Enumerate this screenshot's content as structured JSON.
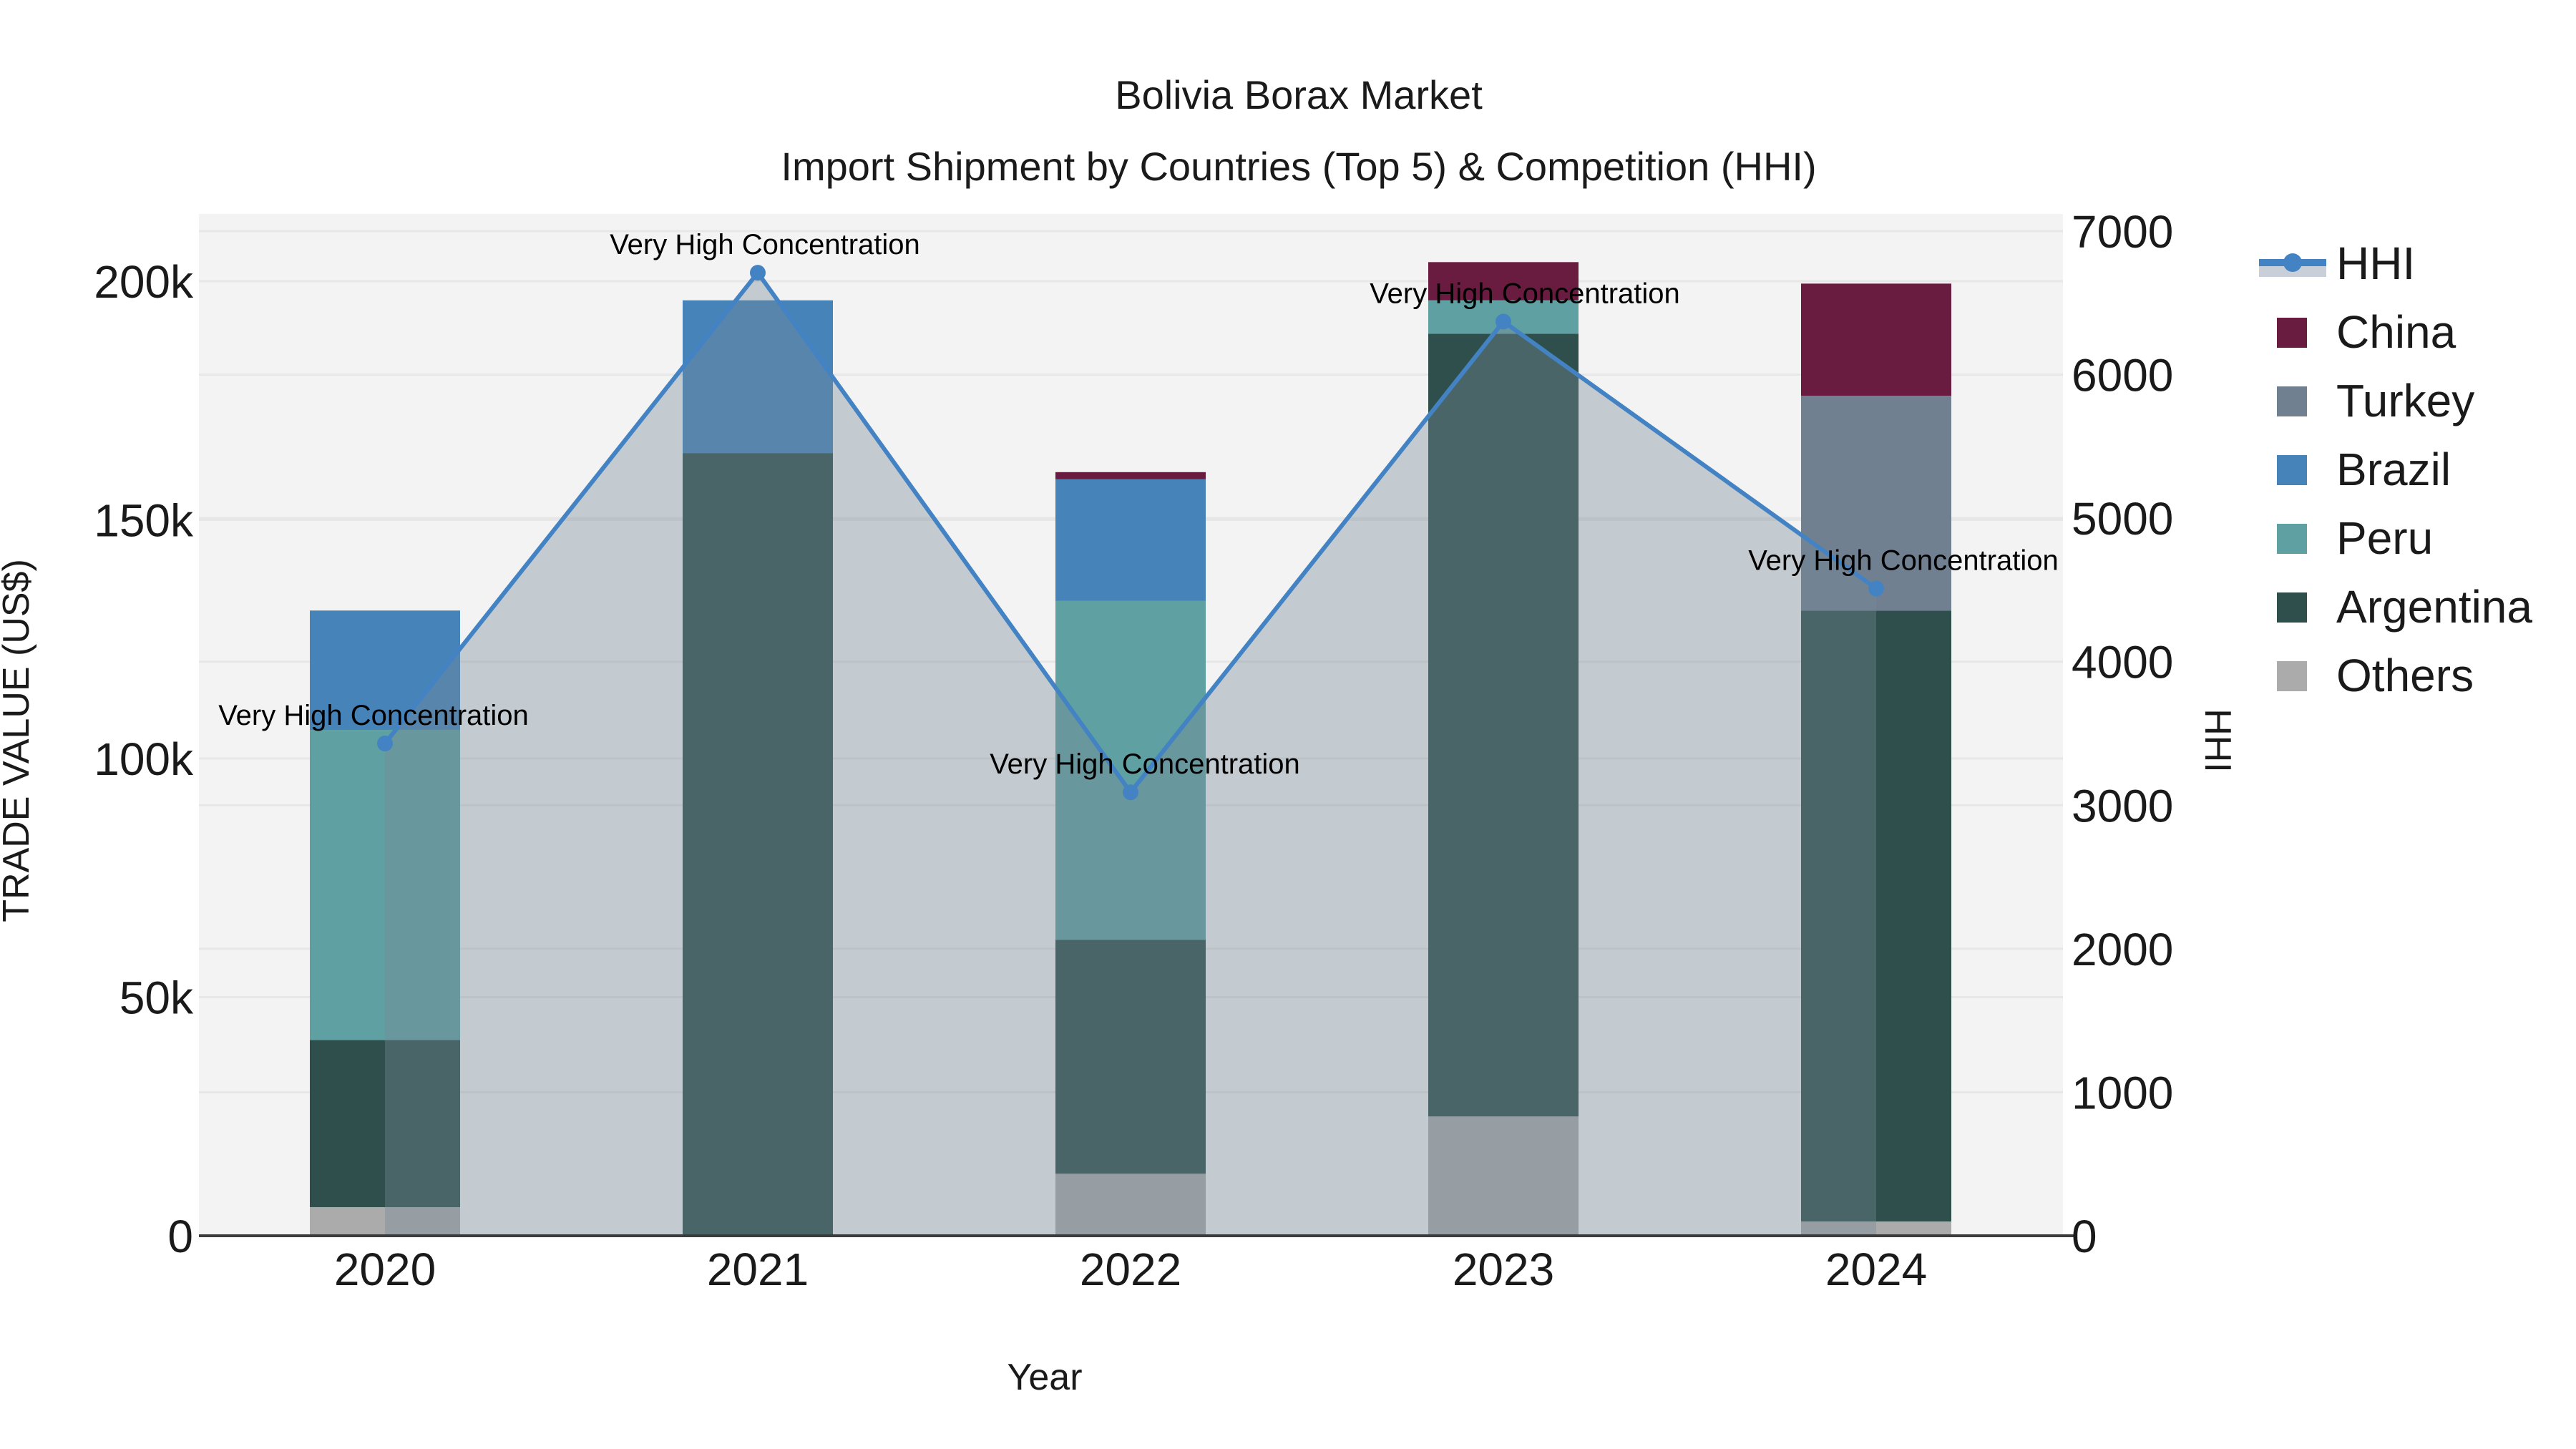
{
  "title": {
    "line1": "Bolivia Borax Market",
    "line2": "Import Shipment by Countries (Top 5) & Competition (HHI)"
  },
  "axes": {
    "x": {
      "title": "Year",
      "tick_labels": [
        "2020",
        "2021",
        "2022",
        "2023",
        "2024"
      ]
    },
    "y_left": {
      "title": "TRADE VALUE (US$)",
      "tick_labels": [
        "0",
        "50k",
        "100k",
        "150k",
        "200k"
      ],
      "tick_values": [
        0,
        50000,
        100000,
        150000,
        200000
      ],
      "range": [
        0,
        214000
      ]
    },
    "y_right": {
      "title": "HHI",
      "tick_labels": [
        "0",
        "1000",
        "2000",
        "3000",
        "4000",
        "5000",
        "6000",
        "7000"
      ],
      "tick_values": [
        0,
        1000,
        2000,
        3000,
        4000,
        5000,
        6000,
        7000
      ],
      "range": [
        0,
        7100
      ]
    }
  },
  "legend": {
    "position": "right",
    "items": [
      {
        "label": "HHI",
        "type": "line"
      },
      {
        "label": "China",
        "type": "swatch"
      },
      {
        "label": "Turkey",
        "type": "swatch"
      },
      {
        "label": "Brazil",
        "type": "swatch"
      },
      {
        "label": "Peru",
        "type": "swatch"
      },
      {
        "label": "Argentina",
        "type": "swatch"
      },
      {
        "label": "Others",
        "type": "swatch"
      }
    ]
  },
  "colors": {
    "China": "#6A1B40",
    "Turkey": "#708090",
    "Brazil": "#4583B9",
    "Peru": "#5FA0A2",
    "Argentina": "#2E4F4B",
    "Others": "#ABABAB",
    "hhi_line": "#4383C4",
    "hhi_area_fill": "rgba(119,136,153,0.39)",
    "plot_bg": "#F3F3F3",
    "grid": "#E7E7E7",
    "axis_line": "#3C3C3C",
    "text": "#1A1A1A"
  },
  "annotation_text": "Very High Concentration",
  "chart_data": {
    "type": "combo: stacked bars (left axis) + line with shaded area (right axis)",
    "title": "Bolivia Borax Market — Import Shipment by Countries (Top 5) & Competition (HHI)",
    "xlabel": "Year",
    "ylabel_left": "TRADE VALUE (US$)",
    "ylabel_right": "HHI",
    "categories": [
      "2020",
      "2021",
      "2022",
      "2023",
      "2024"
    ],
    "stack_order_bottom_to_top": [
      "Others",
      "Argentina",
      "Peru",
      "Brazil",
      "Turkey",
      "China"
    ],
    "bar_series": [
      {
        "name": "Others",
        "axis": "left",
        "values": [
          6000,
          0,
          13000,
          25000,
          3000
        ]
      },
      {
        "name": "Argentina",
        "axis": "left",
        "values": [
          35000,
          164000,
          49000,
          164000,
          128000
        ]
      },
      {
        "name": "Peru",
        "axis": "left",
        "values": [
          65000,
          0,
          71000,
          7000,
          0
        ]
      },
      {
        "name": "Brazil",
        "axis": "left",
        "values": [
          25000,
          32000,
          25500,
          0,
          0
        ]
      },
      {
        "name": "Turkey",
        "axis": "left",
        "values": [
          0,
          0,
          0,
          0,
          45000
        ]
      },
      {
        "name": "China",
        "axis": "left",
        "values": [
          0,
          0,
          1500,
          8000,
          23500
        ]
      }
    ],
    "bar_totals": [
      131000,
      196000,
      160000,
      204000,
      199500
    ],
    "line_series": {
      "name": "HHI",
      "axis": "right",
      "values": [
        3430,
        6710,
        3090,
        6370,
        4510
      ],
      "area_fill": true
    },
    "point_annotations": [
      "Very High Concentration",
      "Very High Concentration",
      "Very High Concentration",
      "Very High Concentration",
      "Very High Concentration"
    ],
    "ylim_left": [
      0,
      214000
    ],
    "ylim_right": [
      0,
      7100
    ],
    "grid": true,
    "legend_position": "right"
  }
}
